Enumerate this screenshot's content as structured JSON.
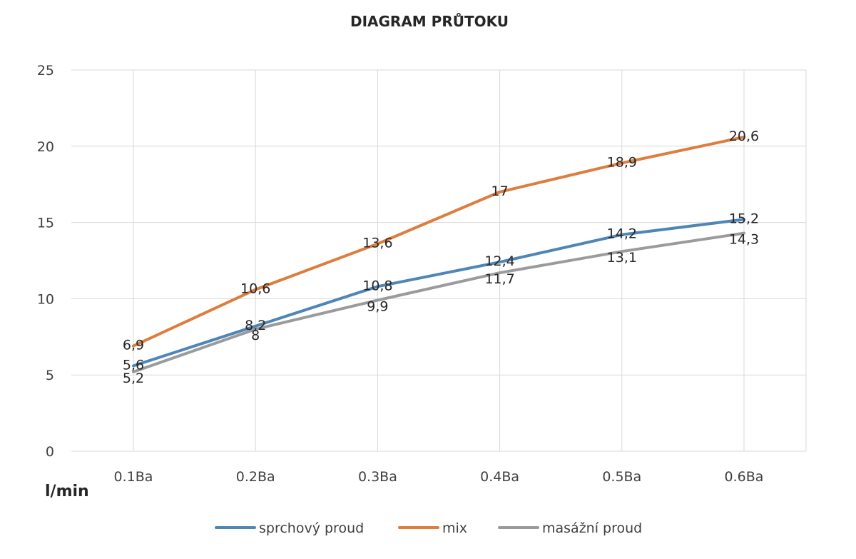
{
  "chart_data": {
    "type": "line",
    "title": "DIAGRAM PRŮTOKU",
    "xlabel": "",
    "ylabel": "l/min",
    "categories": [
      "0.1Ba",
      "0.2Ba",
      "0.3Ba",
      "0.4Ba",
      "0.5Ba",
      "0.6Ba"
    ],
    "ylim": [
      0,
      25
    ],
    "yticks": [
      0,
      5,
      10,
      15,
      20,
      25
    ],
    "grid": true,
    "legend_position": "bottom",
    "series": [
      {
        "name": "sprchový proud",
        "color": "#4f86b5",
        "values": [
          5.6,
          8.2,
          10.8,
          12.4,
          14.2,
          15.2
        ],
        "labels": [
          "5,6",
          "8,2",
          "10,8",
          "12,4",
          "14,2",
          "15,2"
        ]
      },
      {
        "name": "mix",
        "color": "#dd7d3e",
        "values": [
          6.9,
          10.6,
          13.6,
          17,
          18.9,
          20.6
        ],
        "labels": [
          "6,9",
          "10,6",
          "13,6",
          "17",
          "18,9",
          "20,6"
        ]
      },
      {
        "name": "masážní proud",
        "color": "#9b9b9b",
        "values": [
          5.2,
          8,
          9.9,
          11.7,
          13.1,
          14.3
        ],
        "labels": [
          "5,2",
          "8",
          "9,9",
          "11,7",
          "13,1",
          "14,3"
        ]
      }
    ]
  }
}
